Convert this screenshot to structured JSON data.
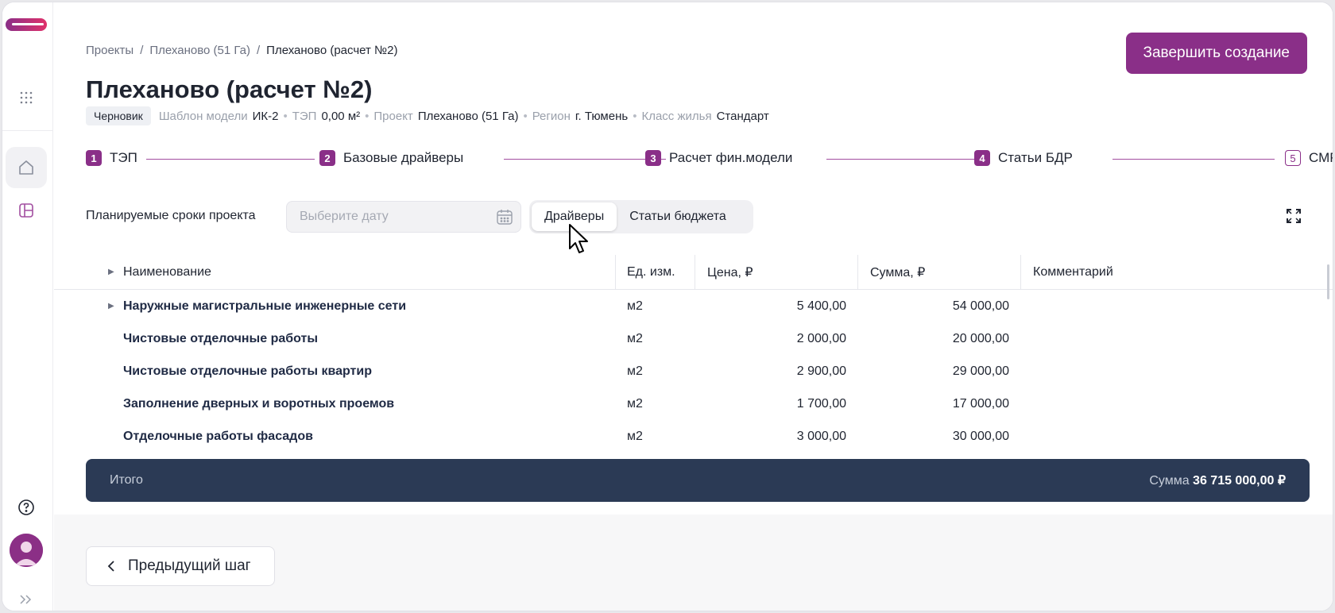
{
  "breadcrumb": {
    "items": [
      "Проекты",
      "Плеханово (51 Га)",
      "Плеханово (расчет №2)"
    ],
    "separator": "/"
  },
  "header": {
    "finish_label": "Завершить создание",
    "title": "Плеханово (расчет №2)",
    "badge": "Черновик",
    "meta": {
      "template_label": "Шаблон модели",
      "template_value": "ИК-2",
      "tep_label": "ТЭП",
      "tep_value": "0,00 м²",
      "project_label": "Проект",
      "project_value": "Плеханово (51 Га)",
      "region_label": "Регион",
      "region_value": "г. Тюмень",
      "class_label": "Класс жилья",
      "class_value": "Стандарт"
    }
  },
  "steps": [
    {
      "num": "1",
      "label": "ТЭП"
    },
    {
      "num": "2",
      "label": "Базовые драйверы"
    },
    {
      "num": "3",
      "label": "Расчет фин.модели"
    },
    {
      "num": "4",
      "label": "Статьи БДР"
    },
    {
      "num": "5",
      "label": "СМР"
    }
  ],
  "toolbar": {
    "terms_label": "Планируемые сроки проекта",
    "date_placeholder": "Выберите дату",
    "seg_drivers": "Драйверы",
    "seg_budget": "Статьи бюджета"
  },
  "table": {
    "headers": {
      "name": "Наименование",
      "unit": "Ед. изм.",
      "price": "Цена, ₽",
      "sum": "Сумма, ₽",
      "comment": "Комментарий"
    },
    "rows": [
      {
        "name": "Наружные магистральные инженерные сети",
        "unit": "м2",
        "price": "5 400,00",
        "sum": "54 000,00",
        "comment": ""
      },
      {
        "name": "Чистовые отделочные работы",
        "unit": "м2",
        "price": "2 000,00",
        "sum": "20 000,00",
        "comment": ""
      },
      {
        "name": "Чистовые отделочные работы квартир",
        "unit": "м2",
        "price": "2 900,00",
        "sum": "29 000,00",
        "comment": ""
      },
      {
        "name": "Заполнение дверных и воротных проемов",
        "unit": "м2",
        "price": "1 700,00",
        "sum": "17 000,00",
        "comment": ""
      },
      {
        "name": "Отделочные работы фасадов",
        "unit": "м2",
        "price": "3 000,00",
        "sum": "30 000,00",
        "comment": ""
      }
    ]
  },
  "total": {
    "label": "Итого",
    "sum_label": "Сумма",
    "sum_value": "36 715 000,00 ₽"
  },
  "footer": {
    "prev_label": "Предыдущий шаг"
  },
  "colors": {
    "accent": "#8a2f88",
    "total_bar": "#2b3a55"
  }
}
